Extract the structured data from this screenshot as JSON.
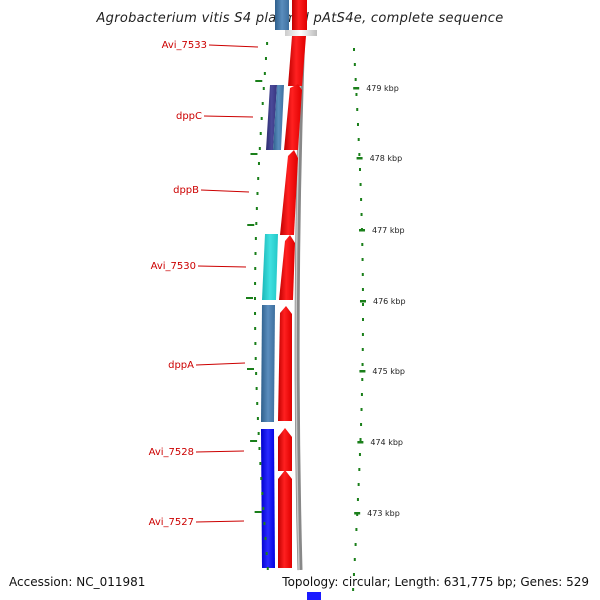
{
  "title": "Agrobacterium vitis S4 plasmid pAtS4e, complete sequence",
  "footer": {
    "accession": "Accession: NC_011981",
    "topology": "Topology: circular; Length: 631,775 bp; Genes: 529"
  },
  "colors": {
    "forward_gene": "#ff0000",
    "label": "#cc0000",
    "tick": "#1a7f1a",
    "backbone": "#888888"
  },
  "scale": {
    "unit": "kbp",
    "ticks": [
      {
        "kbp": 479,
        "label": "479 kbp"
      },
      {
        "kbp": 478,
        "label": "478 kbp"
      },
      {
        "kbp": 477,
        "label": "477 kbp"
      },
      {
        "kbp": 476,
        "label": "476 kbp"
      },
      {
        "kbp": 475,
        "label": "475 kbp"
      },
      {
        "kbp": 474,
        "label": "474 kbp"
      },
      {
        "kbp": 473,
        "label": "473 kbp"
      }
    ]
  },
  "genes": [
    {
      "name": "Avi_7533",
      "label": "Avi_7533"
    },
    {
      "name": "dppC",
      "label": "dppC"
    },
    {
      "name": "dppB",
      "label": "dppB"
    },
    {
      "name": "Avi_7530",
      "label": "Avi_7530"
    },
    {
      "name": "dppA",
      "label": "dppA"
    },
    {
      "name": "Avi_7528",
      "label": "Avi_7528"
    },
    {
      "name": "Avi_7527",
      "label": "Avi_7527"
    }
  ]
}
